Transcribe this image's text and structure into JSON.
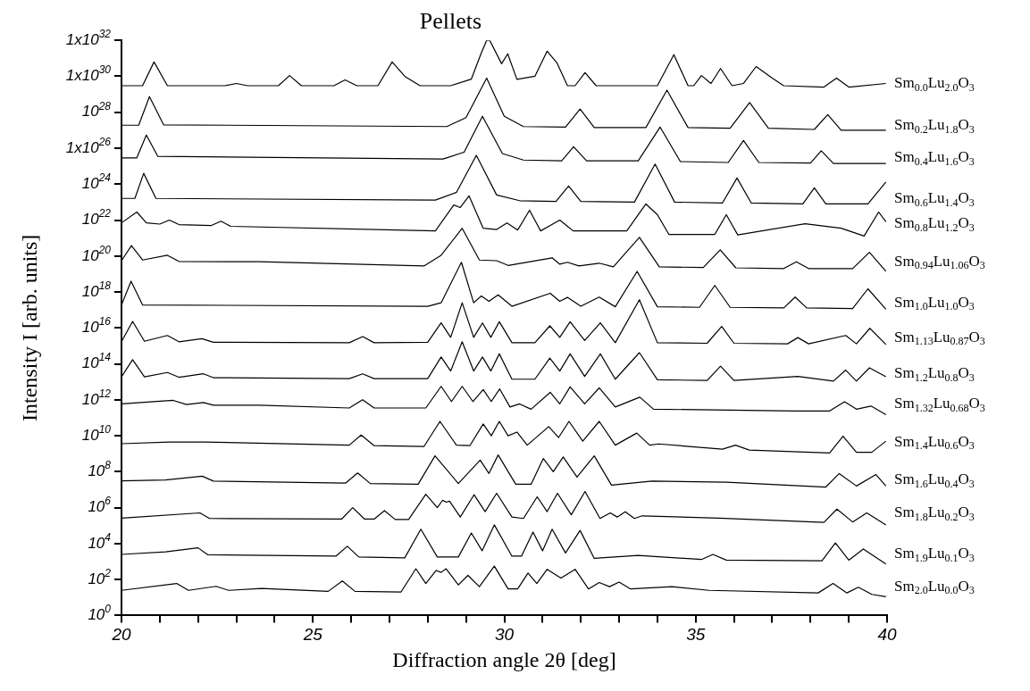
{
  "chart_data": {
    "type": "line",
    "title": "Pellets",
    "xlabel": "Diffraction angle 2θ [deg]",
    "ylabel": "Intensity I [arb. units]",
    "xlim": [
      20,
      40
    ],
    "xticks": [
      20,
      {
        "value": 21,
        "label": null
      },
      {
        "value": 22,
        "label": null
      },
      {
        "value": 23,
        "label": null
      },
      {
        "value": 24,
        "label": null
      },
      25,
      {
        "value": 26,
        "label": null
      },
      {
        "value": 27,
        "label": null
      },
      {
        "value": 28,
        "label": null
      },
      {
        "value": 29,
        "label": null
      },
      30,
      {
        "value": 31,
        "label": null
      },
      {
        "value": 32,
        "label": null
      },
      {
        "value": 33,
        "label": null
      },
      {
        "value": 34,
        "label": null
      },
      35,
      {
        "value": 36,
        "label": null
      },
      {
        "value": 37,
        "label": null
      },
      {
        "value": 38,
        "label": null
      },
      {
        "value": 39,
        "label": null
      },
      40
    ],
    "ylim": [
      1,
      1e+32
    ],
    "yticks": [
      {
        "value": 1,
        "label": "10$^{0}$"
      },
      {
        "value": 100.0,
        "label": "10$^{2}$"
      },
      {
        "value": 10000.0,
        "label": "10$^{4}$"
      },
      {
        "value": 1000000.0,
        "label": "10$^{6}$"
      },
      {
        "value": 100000000.0,
        "label": "10$^{8}$"
      },
      {
        "value": 10000000000.0,
        "label": "10$^{10}$"
      },
      {
        "value": 1000000000000.0,
        "label": "10$^{12}$"
      },
      {
        "value": 100000000000000.0,
        "label": "10$^{14}$"
      },
      {
        "value": 1e+16,
        "label": "10$^{16}$"
      },
      {
        "value": 1e+18,
        "label": "10$^{18}$"
      },
      {
        "value": 1e+20,
        "label": "10$^{20}$"
      },
      {
        "value": 1e+22,
        "label": "10$^{22}$"
      },
      {
        "value": 1e+24,
        "label": "10$^{24}$"
      },
      {
        "value": 1e+26,
        "label": "1x10$^{26}$"
      },
      {
        "value": 1e+28,
        "label": "10$^{28}$"
      },
      {
        "value": 1e+30,
        "label": "1x10$^{30}$"
      },
      {
        "value": 1e+32,
        "label": "1x10$^{32}$"
      }
    ],
    "log": "y",
    "grid": false,
    "legend": false,
    "marker": "none",
    "line_style": "solid",
    "series": [
      {
        "name": "Sm$_{0.0}$Lu$_{2.0}$O$_{3}$",
        "color": "#000000",
        "x": [
          20.0,
          20.55,
          20.85,
          21.2,
          22.7,
          23.0,
          23.3,
          24.1,
          24.39,
          24.7,
          25.55,
          25.84,
          26.15,
          26.7,
          27.07,
          27.4,
          27.55,
          27.8,
          28.6,
          29.14,
          29.4,
          29.54,
          29.62,
          29.93,
          30.09,
          30.33,
          30.8,
          31.12,
          31.38,
          31.65,
          31.85,
          32.11,
          32.4,
          34.0,
          34.43,
          34.8,
          34.95,
          35.15,
          35.4,
          35.65,
          35.95,
          36.25,
          36.58,
          37.0,
          37.3,
          38.35,
          38.68,
          39.0,
          39.97
        ],
        "values": [
          3e+29,
          3e+29,
          6.3e+30,
          3e+29,
          3e+29,
          4e+29,
          3e+29,
          3e+29,
          1.1e+30,
          3e+29,
          3e+29,
          6.3e+29,
          3e+29,
          3e+29,
          6.3e+30,
          1e+30,
          6.3e+29,
          3e+29,
          3e+29,
          7e+29,
          2e+31,
          1e+32,
          1e+32,
          5e+30,
          1.8e+31,
          6.8e+29,
          1e+30,
          2.5e+31,
          5.4e+30,
          3e+29,
          3e+29,
          1.6e+30,
          3e+29,
          3e+29,
          1.6e+31,
          3e+29,
          3e+29,
          1.1e+30,
          4e+29,
          2.7e+30,
          3e+29,
          4e+29,
          3.5e+30,
          8e+29,
          3e+29,
          2.5e+29,
          7.9e+29,
          2.5e+29,
          4e+29
        ]
      },
      {
        "name": "Sm$_{0.2}$Lu$_{1.8}$O$_{3}$",
        "color": "#000000",
        "x": [
          20.0,
          20.45,
          20.73,
          21.1,
          28.5,
          29.0,
          29.54,
          30.0,
          30.5,
          31.6,
          31.98,
          32.35,
          33.7,
          34.25,
          34.8,
          35.9,
          36.41,
          36.9,
          38.1,
          38.45,
          38.8,
          39.97
        ],
        "values": [
          1.9e+27,
          1.9e+27,
          7.4e+28,
          2e+27,
          1.6e+27,
          5e+27,
          7.9e+29,
          6e+27,
          1.6e+27,
          1.5e+27,
          1.5e+28,
          1.4e+27,
          1.4e+27,
          1.7e+29,
          1.4e+27,
          1.3e+27,
          3.5e+28,
          1.3e+27,
          1.1e+27,
          7.4e+27,
          1e+27,
          1e+27
        ]
      },
      {
        "name": "Sm$_{0.4}$Lu$_{1.6}$O$_{3}$",
        "color": "#000000",
        "x": [
          20.0,
          20.4,
          20.65,
          20.95,
          28.4,
          28.95,
          29.43,
          29.95,
          30.5,
          31.5,
          31.81,
          32.15,
          33.5,
          34.07,
          34.6,
          35.85,
          36.25,
          36.65,
          38.0,
          38.28,
          38.6,
          39.97
        ],
        "values": [
          2.9e+25,
          2.9e+25,
          5.4e+26,
          3.5e+25,
          2.5e+25,
          6e+25,
          6e+27,
          5e+25,
          2.2e+25,
          2e+25,
          1.2e+26,
          2e+25,
          2e+25,
          1.5e+27,
          1.8e+25,
          1.6e+25,
          2.7e+26,
          1.6e+25,
          1.5e+25,
          7.2e+25,
          1.4e+25,
          1.4e+25
        ]
      },
      {
        "name": "Sm$_{0.6}$Lu$_{1.4}$O$_{3}$",
        "color": "#000000",
        "x": [
          20.0,
          20.35,
          20.58,
          20.9,
          28.2,
          28.75,
          29.27,
          29.8,
          30.4,
          31.35,
          31.68,
          32.0,
          33.4,
          33.94,
          34.45,
          35.7,
          36.08,
          36.45,
          37.8,
          38.1,
          38.4,
          39.5,
          39.97
        ],
        "values": [
          1.6e+23,
          1.6e+23,
          4e+24,
          1.6e+23,
          1.3e+23,
          3.5e+23,
          4e+25,
          2.5e+23,
          1.2e+23,
          1.1e+23,
          7.9e+23,
          1.1e+23,
          1e+23,
          1.3e+25,
          1e+23,
          9e+22,
          2.2e+24,
          9e+22,
          8e+22,
          6.3e+23,
          7.9e+22,
          8e+22,
          1.3e+24
        ]
      },
      {
        "name": "Sm$_{0.8}$Lu$_{1.2}$O$_{3}$",
        "color": "#000000",
        "x": [
          20.0,
          20.4,
          20.65,
          21.0,
          21.25,
          21.5,
          22.35,
          22.6,
          22.85,
          28.2,
          28.68,
          28.85,
          29.08,
          29.45,
          29.8,
          30.07,
          30.35,
          30.66,
          30.95,
          31.45,
          31.8,
          33.2,
          33.7,
          34.0,
          34.3,
          35.5,
          35.8,
          36.1,
          37.86,
          38.8,
          39.4,
          39.78,
          39.97
        ],
        "values": [
          7e+21,
          2.8e+22,
          7e+21,
          6e+21,
          1e+22,
          5.6e+21,
          5e+21,
          8.7e+21,
          4.5e+21,
          2.5e+21,
          6.9e+22,
          5e+22,
          2.2e+23,
          3.5e+21,
          3e+21,
          7e+21,
          2.8e+21,
          3.5e+22,
          2.5e+21,
          1e+22,
          2.5e+21,
          2.5e+21,
          7.9e+22,
          2e+22,
          1.6e+21,
          1.6e+21,
          2e+22,
          1.5e+21,
          6.3e+21,
          3.5e+21,
          1.3e+21,
          2.8e+22,
          8e+21
        ]
      },
      {
        "name": "Sm$_{0.94}$Lu$_{1.06}$O$_{3}$",
        "color": "#000000",
        "x": [
          20.0,
          20.26,
          20.55,
          21.2,
          21.5,
          23.6,
          27.9,
          28.35,
          28.9,
          29.35,
          29.8,
          30.1,
          31.25,
          31.45,
          31.65,
          31.95,
          32.48,
          32.85,
          33.53,
          34.05,
          35.2,
          35.64,
          36.05,
          37.3,
          37.63,
          37.95,
          39.1,
          39.54,
          39.97
        ],
        "values": [
          5.5e+19,
          3.8e+20,
          6e+19,
          1.1e+20,
          5e+19,
          4.8e+19,
          2.8e+19,
          1.1e+20,
          3.5e+21,
          6e+19,
          5.5e+19,
          3e+19,
          7.9e+19,
          3.5e+19,
          4.5e+19,
          2.8e+19,
          4e+19,
          2.5e+19,
          1.1e+21,
          2.5e+19,
          2.3e+19,
          2.2e+20,
          2.2e+19,
          2e+19,
          4.8e+19,
          2e+19,
          2e+19,
          1.6e+20,
          1.4e+19
        ]
      },
      {
        "name": "Sm$_{1.0}$Lu$_{1.0}$O$_{3}$",
        "color": "#000000",
        "x": [
          20.0,
          20.25,
          20.55,
          28.0,
          28.35,
          28.88,
          29.2,
          29.4,
          29.6,
          29.84,
          30.2,
          31.2,
          31.45,
          31.65,
          32.0,
          32.48,
          32.9,
          33.47,
          34.0,
          35.1,
          35.5,
          35.9,
          37.3,
          37.6,
          37.9,
          39.1,
          39.5,
          39.97
        ],
        "values": [
          1.9e+17,
          4e+18,
          1.9e+17,
          1.6e+17,
          2.5e+17,
          4.5e+19,
          2.5e+17,
          6e+17,
          3e+17,
          6.9e+17,
          1.6e+17,
          8.5e+17,
          3e+17,
          5e+17,
          1.6e+17,
          5.2e+17,
          1.5e+17,
          1.4e+19,
          1.5e+17,
          1.4e+17,
          2.3e+18,
          1.4e+17,
          1.3e+17,
          5.2e+17,
          1.3e+17,
          1.2e+17,
          1.5e+18,
          1.1e+17
        ]
      },
      {
        "name": "Sm$_{1.13}$Lu$_{0.87}$O$_{3}$",
        "color": "#000000",
        "x": [
          20.0,
          20.29,
          20.6,
          21.2,
          21.5,
          22.1,
          22.4,
          25.95,
          26.3,
          26.6,
          28.0,
          28.35,
          28.6,
          28.9,
          29.2,
          29.43,
          29.65,
          29.87,
          30.2,
          30.8,
          31.19,
          31.45,
          31.72,
          32.1,
          32.51,
          32.9,
          33.53,
          34.0,
          35.3,
          35.68,
          36.0,
          37.4,
          37.67,
          37.95,
          38.92,
          39.2,
          39.55,
          39.97
        ],
        "values": [
          1700000000000000.0,
          2.3e+16,
          1800000000000000.0,
          3800000000000000.0,
          1700000000000000.0,
          2500000000000000.0,
          1600000000000000.0,
          1500000000000000.0,
          3300000000000000.0,
          1500000000000000.0,
          1600000000000000.0,
          1.9e+16,
          3000000000000000.0,
          2.5e+17,
          3000000000000000.0,
          1.9e+16,
          3000000000000000.0,
          2.2e+16,
          1500000000000000.0,
          1500000000000000.0,
          1.3e+16,
          3000000000000000.0,
          2.2e+16,
          2000000000000000.0,
          1.9e+16,
          1500000000000000.0,
          3.7e+17,
          1500000000000000.0,
          1400000000000000.0,
          1.2e+16,
          1400000000000000.0,
          1300000000000000.0,
          2900000000000000.0,
          1300000000000000.0,
          3800000000000000.0,
          1300000000000000.0,
          9500000000000000.0,
          1200000000000000.0
        ]
      },
      {
        "name": "Sm$_{1.2}$Lu$_{0.8}$O$_{3}$",
        "color": "#000000",
        "x": [
          20.0,
          20.29,
          20.6,
          21.2,
          21.5,
          22.14,
          22.4,
          25.95,
          26.3,
          26.6,
          28.0,
          28.35,
          28.6,
          28.9,
          29.2,
          29.43,
          29.65,
          29.87,
          30.2,
          30.8,
          31.19,
          31.45,
          31.72,
          32.1,
          32.51,
          32.9,
          33.53,
          34.0,
          35.3,
          35.65,
          36.0,
          37.67,
          38.6,
          38.92,
          39.2,
          39.54,
          39.97
        ],
        "values": [
          19000000000000.0,
          170000000000000.0,
          19000000000000.0,
          33000000000000.0,
          18000000000000.0,
          28000000000000.0,
          17000000000000.0,
          15000000000000.0,
          28000000000000.0,
          15000000000000.0,
          15000000000000.0,
          240000000000000.0,
          40000000000000.0,
          1700000000000000.0,
          40000000000000.0,
          240000000000000.0,
          40000000000000.0,
          360000000000000.0,
          14000000000000.0,
          14000000000000.0,
          210000000000000.0,
          40000000000000.0,
          360000000000000.0,
          20000000000000.0,
          360000000000000.0,
          14000000000000.0,
          420000000000000.0,
          13000000000000.0,
          12000000000000.0,
          74000000000000.0,
          12000000000000.0,
          20000000000000.0,
          11000000000000.0,
          45000000000000.0,
          11000000000000.0,
          60000000000000.0,
          19000000000000.0
        ]
      },
      {
        "name": "Sm$_{1.32}$Lu$_{0.68}$O$_{3}$",
        "color": "#000000",
        "x": [
          20.0,
          21.35,
          21.7,
          22.14,
          22.4,
          23.6,
          25.95,
          26.3,
          26.6,
          27.95,
          28.35,
          28.62,
          28.9,
          29.18,
          29.45,
          29.66,
          29.88,
          30.15,
          30.4,
          30.7,
          31.2,
          31.45,
          31.72,
          32.1,
          32.48,
          32.9,
          33.54,
          33.9,
          37.6,
          38.5,
          38.89,
          39.2,
          39.58,
          39.97
        ],
        "values": [
          590000000000.0,
          930000000000.0,
          550000000000.0,
          700000000000.0,
          500000000000.0,
          500000000000.0,
          350000000000.0,
          1000000000000.0,
          350000000000.0,
          350000000000.0,
          5600000000000.0,
          800000000000.0,
          5600000000000.0,
          800000000000.0,
          3700000000000.0,
          800000000000.0,
          4000000000000.0,
          400000000000.0,
          590000000000.0,
          300000000000.0,
          2600000000000.0,
          600000000000.0,
          5200000000000.0,
          600000000000.0,
          4600000000000.0,
          400000000000.0,
          1400000000000.0,
          300000000000.0,
          240000000000.0,
          240000000000.0,
          790000000000.0,
          300000000000.0,
          450000000000.0,
          150000000000.0
        ]
      },
      {
        "name": "Sm$_{1.4}$Lu$_{0.6}$O$_{3}$",
        "color": "#000000",
        "x": [
          20.0,
          21.25,
          22.14,
          25.95,
          26.26,
          26.6,
          27.9,
          28.32,
          28.75,
          29.1,
          29.45,
          29.66,
          29.87,
          30.1,
          30.33,
          30.6,
          31.16,
          31.42,
          31.69,
          32.05,
          32.48,
          32.9,
          33.46,
          33.8,
          34.03,
          35.7,
          36.04,
          36.4,
          38.5,
          38.85,
          39.2,
          39.6,
          39.97
        ],
        "values": [
          3600000000.0,
          4500000000.0,
          4500000000.0,
          3000000000.0,
          11000000000.0,
          2800000000.0,
          2500000000.0,
          63000000000.0,
          3000000000.0,
          2800000000.0,
          45000000000.0,
          10000000000.0,
          63000000000.0,
          10000000000.0,
          16000000000.0,
          3000000000.0,
          32000000000.0,
          8000000000.0,
          63000000000.0,
          5000000000.0,
          63000000000.0,
          3000000000.0,
          14000000000.0,
          3000000000.0,
          3500000000.0,
          1800000000.0,
          3000000000.0,
          1600000000.0,
          1100000000.0,
          9300000000.0,
          1200000000.0,
          1200000000.0,
          5000000000.0
        ]
      },
      {
        "name": "Sm$_{1.6}$Lu$_{0.4}$O$_{3}$",
        "color": "#000000",
        "x": [
          20.0,
          21.15,
          22.11,
          22.4,
          25.85,
          26.17,
          26.5,
          27.75,
          28.19,
          28.8,
          29.37,
          29.6,
          29.84,
          30.3,
          30.7,
          31.02,
          31.28,
          31.54,
          31.9,
          32.35,
          32.8,
          33.86,
          35.81,
          38.4,
          38.75,
          39.2,
          39.71,
          39.97
        ],
        "values": [
          31000000.0,
          35000000.0,
          56000000.0,
          30000000.0,
          23000000.0,
          85000000.0,
          22000000.0,
          20000000.0,
          760000000.0,
          22000000.0,
          440000000.0,
          80000000.0,
          850000000.0,
          20000000.0,
          20000000.0,
          540000000.0,
          100000000.0,
          660000000.0,
          50000000.0,
          760000000.0,
          18000000.0,
          30000000.0,
          26000000.0,
          14000000.0,
          79000000.0,
          16000000.0,
          69000000.0,
          16000000.0
        ]
      },
      {
        "name": "Sm$_{1.8}$Lu$_{0.2}$O$_{3}$",
        "color": "#000000",
        "x": [
          20.0,
          22.05,
          22.3,
          25.75,
          26.04,
          26.35,
          26.6,
          26.87,
          27.15,
          27.5,
          27.95,
          28.25,
          28.39,
          28.48,
          28.57,
          28.85,
          29.21,
          29.5,
          29.8,
          30.2,
          30.5,
          30.86,
          31.12,
          31.39,
          31.75,
          32.11,
          32.5,
          32.77,
          32.95,
          33.16,
          33.4,
          33.6,
          35.61,
          38.35,
          38.69,
          39.1,
          39.47,
          39.97
        ],
        "values": [
          260000.0,
          510000.0,
          250000.0,
          230000.0,
          1000000.0,
          230000.0,
          230000.0,
          680000.0,
          220000.0,
          220000.0,
          5600000.0,
          1000000.0,
          2600000.0,
          2000000.0,
          2300000.0,
          300000.0,
          5200000.0,
          600000.0,
          6300000.0,
          300000.0,
          250000.0,
          4000000.0,
          600000.0,
          6300000.0,
          400000.0,
          7900000.0,
          250000.0,
          510000.0,
          300000.0,
          590000.0,
          250000.0,
          350000.0,
          260000.0,
          150000.0,
          830000.0,
          160000.0,
          510000.0,
          110000.0
        ]
      },
      {
        "name": "Sm$_{1.9}$Lu$_{0.1}$O$_{3}$",
        "color": "#000000",
        "x": [
          20.0,
          21.15,
          22.0,
          22.25,
          25.6,
          25.9,
          26.2,
          27.4,
          27.82,
          28.25,
          28.8,
          29.14,
          29.42,
          29.74,
          30.2,
          30.45,
          30.75,
          31.0,
          31.25,
          31.6,
          31.98,
          32.35,
          33.5,
          35.15,
          35.45,
          35.8,
          38.3,
          38.65,
          39.0,
          39.38,
          39.97
        ],
        "values": [
          2500.0,
          3500.0,
          5800.0,
          2400.0,
          2000.0,
          7100.0,
          1800.0,
          1600.0,
          63000.0,
          1800.0,
          1800.0,
          39000.0,
          4000.0,
          110000.0,
          2000.0,
          2000.0,
          44000.0,
          4000.0,
          63000.0,
          3000.0,
          54000.0,
          1500.0,
          2200.0,
          1300.0,
          2500.0,
          1200.0,
          1100.0,
          11000.0,
          1200.0,
          5000.0,
          740
        ]
      },
      {
        "name": "Sm$_{2.0}$Lu$_{0.0}$O$_{3}$",
        "color": "#000000",
        "x": [
          20.0,
          21.44,
          21.75,
          22.47,
          22.8,
          23.66,
          25.4,
          25.77,
          26.1,
          27.3,
          27.69,
          27.95,
          28.22,
          28.35,
          28.48,
          28.8,
          29.05,
          29.35,
          29.74,
          30.1,
          30.35,
          30.62,
          30.85,
          31.12,
          31.48,
          31.85,
          32.2,
          32.48,
          32.75,
          33.0,
          33.3,
          34.39,
          35.35,
          38.2,
          38.59,
          38.95,
          39.25,
          39.6,
          39.97
        ],
        "values": [
          25,
          60,
          25,
          42,
          25,
          32,
          22,
          83,
          22,
          20,
          400,
          60,
          320,
          250,
          400,
          50,
          170,
          40,
          560,
          30,
          30,
          230,
          60,
          370,
          120,
          370,
          30,
          68,
          40,
          72,
          30,
          40,
          25,
          18,
          60,
          18,
          37,
          15,
          11
        ]
      }
    ]
  }
}
